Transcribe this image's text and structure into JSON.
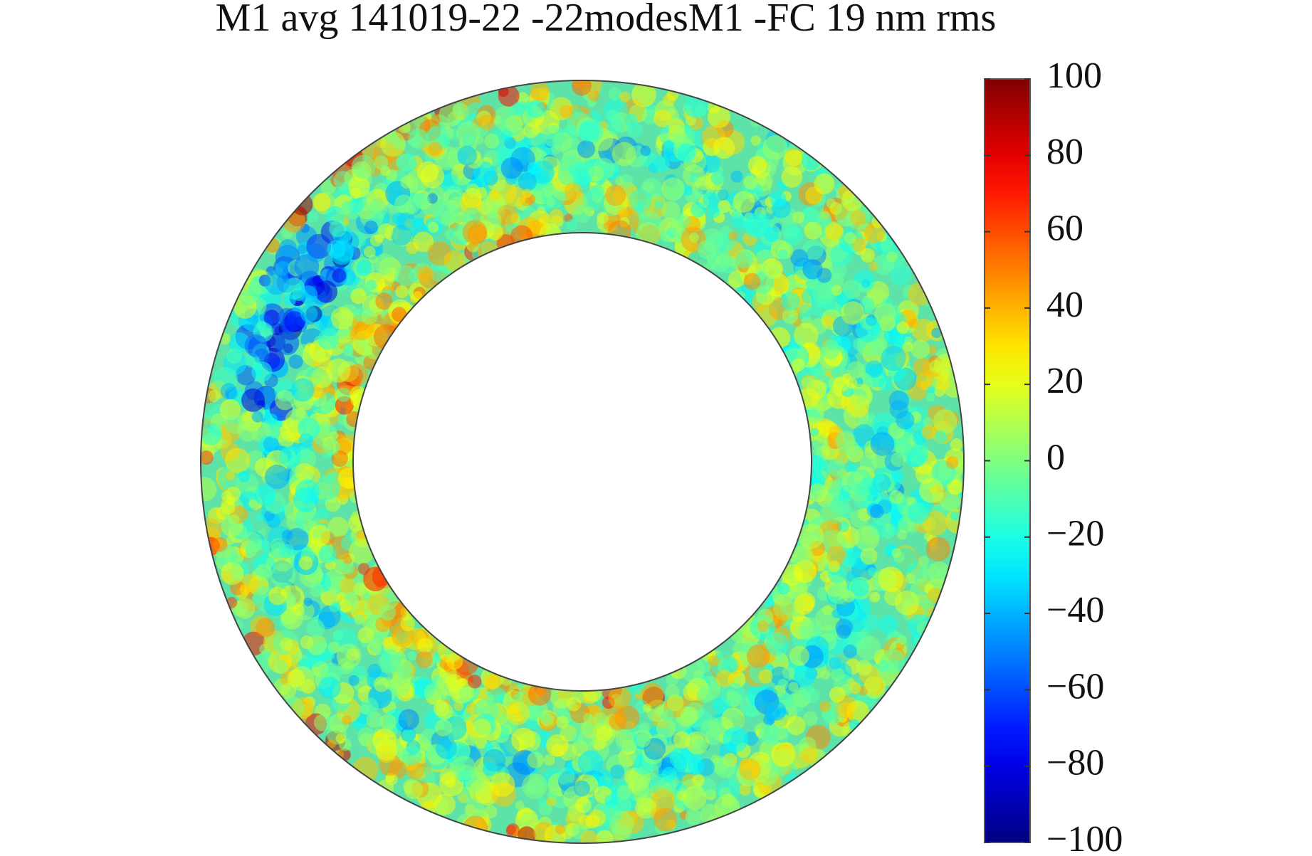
{
  "chart_data": {
    "type": "surface-map",
    "title": "M1 avg 141019-22 -22modesM1 -FC 19 nm rms",
    "colormap": "jet",
    "clim": [
      -100,
      100
    ],
    "cticks": [
      {
        "value": -100,
        "label": "−100"
      },
      {
        "value": -80,
        "label": "−80"
      },
      {
        "value": -60,
        "label": "−60"
      },
      {
        "value": -40,
        "label": "−40"
      },
      {
        "value": -20,
        "label": "−20"
      },
      0,
      20,
      40,
      60,
      80,
      100
    ]
  }
}
